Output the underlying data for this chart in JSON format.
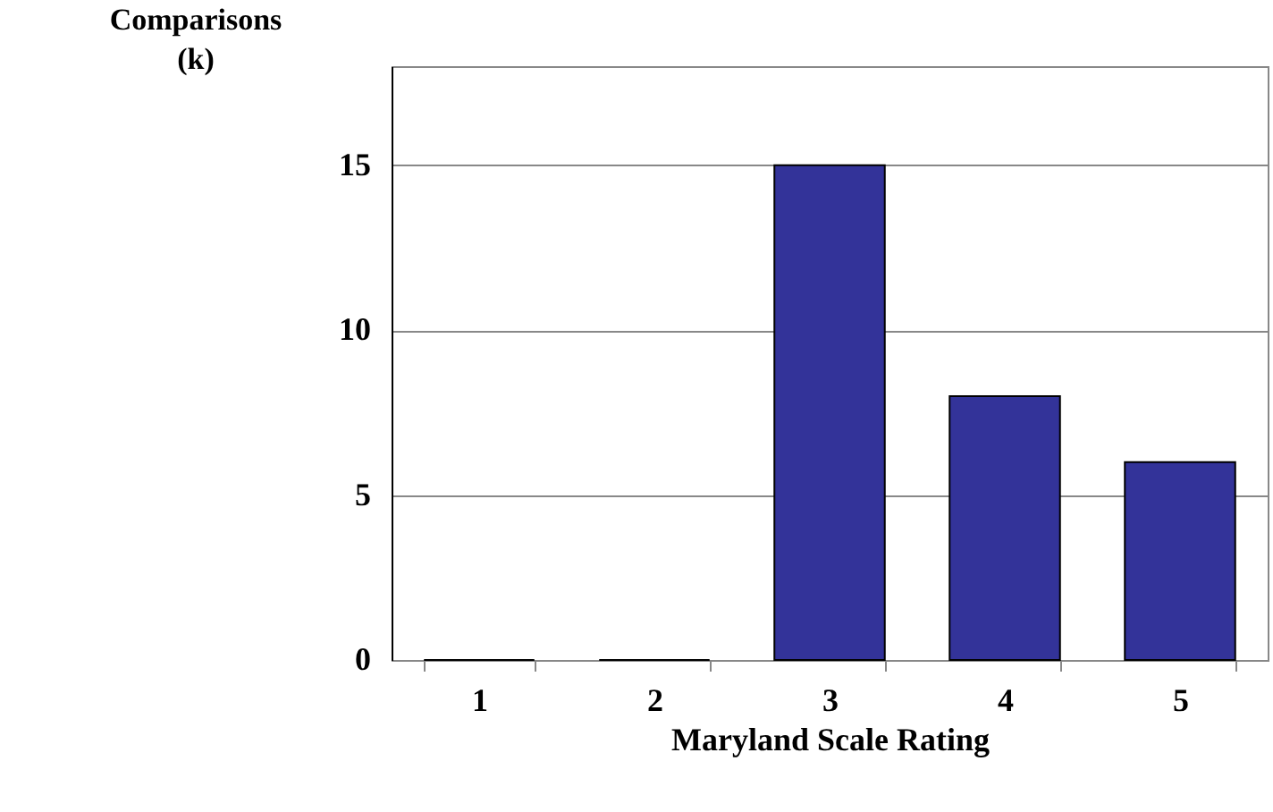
{
  "chart_data": {
    "type": "bar",
    "xlabel": "Maryland Scale Rating",
    "ylabel": "Comparisons (k)",
    "categories": [
      "1",
      "2",
      "3",
      "4",
      "5"
    ],
    "values": [
      0,
      0,
      15,
      8,
      6
    ],
    "color": "#333399",
    "ylim": [
      0,
      18
    ],
    "yticks": [
      0,
      5,
      10,
      15
    ],
    "grid": "y"
  }
}
